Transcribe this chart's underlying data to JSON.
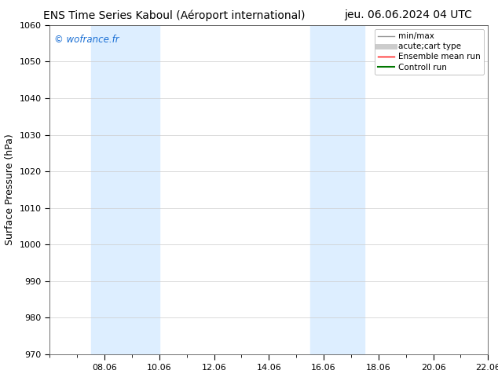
{
  "title_left": "ENS Time Series Kaboul (Aéroport international)",
  "title_right": "jeu. 06.06.2024 04 UTC",
  "ylabel": "Surface Pressure (hPa)",
  "ylim": [
    970,
    1060
  ],
  "yticks": [
    970,
    980,
    990,
    1000,
    1010,
    1020,
    1030,
    1040,
    1050,
    1060
  ],
  "xlim": [
    0,
    16
  ],
  "xtick_labels": [
    "08.06",
    "10.06",
    "12.06",
    "14.06",
    "16.06",
    "18.06",
    "20.06",
    "22.06"
  ],
  "xtick_positions": [
    2,
    4,
    6,
    8,
    10,
    12,
    14,
    16
  ],
  "shaded_bands": [
    {
      "x_start": 1.5,
      "x_end": 2.5
    },
    {
      "x_start": 2.5,
      "x_end": 4.0
    },
    {
      "x_start": 9.5,
      "x_end": 10.5
    },
    {
      "x_start": 10.5,
      "x_end": 11.5
    }
  ],
  "shaded_color": "#ddeeff",
  "watermark": "© wofrance.fr",
  "watermark_color": "#1a6fd4",
  "background_color": "#ffffff",
  "plot_bg_color": "#ffffff",
  "grid_color": "#cccccc",
  "legend_entries": [
    {
      "label": "min/max",
      "color": "#999999",
      "lw": 1.0
    },
    {
      "label": "acute;cart type",
      "color": "#cccccc",
      "lw": 5
    },
    {
      "label": "Ensemble mean run",
      "color": "#ff0000",
      "lw": 1.0
    },
    {
      "label": "Controll run",
      "color": "#007700",
      "lw": 1.5
    }
  ],
  "title_fontsize": 10,
  "tick_fontsize": 8,
  "ylabel_fontsize": 9,
  "legend_fontsize": 7.5
}
